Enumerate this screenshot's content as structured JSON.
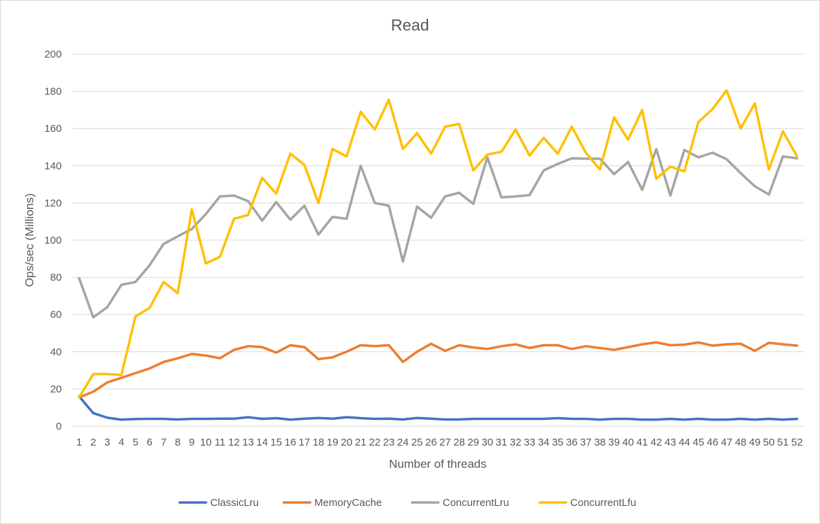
{
  "chart_data": {
    "type": "line",
    "title": "Read",
    "xlabel": "Number of threads",
    "ylabel": "Ops/sec (Millions)",
    "ylim": [
      0,
      200
    ],
    "yticks": [
      "0",
      "20",
      "40",
      "60",
      "80",
      "100",
      "120",
      "140",
      "160",
      "180",
      "200"
    ],
    "grid": true,
    "legend_position": "bottom",
    "categories": [
      "1",
      "2",
      "3",
      "4",
      "5",
      "6",
      "7",
      "8",
      "9",
      "10",
      "11",
      "12",
      "13",
      "14",
      "15",
      "16",
      "17",
      "18",
      "19",
      "20",
      "21",
      "22",
      "23",
      "24",
      "25",
      "26",
      "27",
      "28",
      "29",
      "30",
      "31",
      "32",
      "33",
      "34",
      "35",
      "36",
      "37",
      "38",
      "39",
      "40",
      "41",
      "42",
      "43",
      "44",
      "45",
      "46",
      "47",
      "48",
      "49",
      "50",
      "51",
      "52"
    ],
    "series": [
      {
        "name": "ClassicLru",
        "color": "#4472c4",
        "values": [
          16,
          7,
          4.5,
          3.5,
          3.8,
          3.9,
          3.9,
          3.6,
          3.9,
          3.9,
          4,
          4,
          4.8,
          3.9,
          4.3,
          3.5,
          4,
          4.4,
          4,
          4.8,
          4.3,
          3.9,
          4,
          3.6,
          4.4,
          4,
          3.6,
          3.6,
          3.9,
          3.9,
          3.9,
          3.9,
          3.9,
          3.9,
          4.3,
          3.9,
          3.9,
          3.5,
          3.9,
          3.9,
          3.5,
          3.5,
          3.9,
          3.5,
          3.9,
          3.5,
          3.5,
          3.9,
          3.5,
          3.9,
          3.5,
          3.9
        ]
      },
      {
        "name": "MemoryCache",
        "color": "#ed7d31",
        "values": [
          15.5,
          18.5,
          23.5,
          26,
          28.5,
          31,
          34.5,
          36.5,
          38.8,
          38,
          36.5,
          41,
          43,
          42.5,
          39.5,
          43.5,
          42.5,
          36,
          37,
          40,
          43.5,
          43,
          43.5,
          34.5,
          40,
          44.3,
          40.5,
          43.5,
          42.3,
          41.5,
          43,
          44,
          42,
          43.5,
          43.5,
          41.5,
          43,
          42,
          41,
          42.5,
          44,
          45,
          43.5,
          43.8,
          45,
          43.3,
          44,
          44.3,
          40.5,
          44.8,
          44,
          43.3
        ]
      },
      {
        "name": "ConcurrentLru",
        "color": "#a5a5a5",
        "values": [
          79.5,
          58.5,
          64,
          76,
          77.5,
          86.5,
          98,
          102,
          106,
          114,
          123.5,
          124,
          121,
          110.5,
          120.5,
          111,
          118.5,
          103,
          112.5,
          111.5,
          140,
          120,
          118.5,
          88.5,
          118,
          112,
          123.5,
          125.5,
          119.5,
          144.5,
          123,
          123.5,
          124.2,
          137.5,
          141,
          144,
          143.8,
          143.8,
          135.5,
          142,
          127,
          149,
          124,
          148.5,
          144.5,
          147,
          143.5,
          136,
          129,
          124.5,
          145,
          144
        ]
      },
      {
        "name": "ConcurrentLfu",
        "color": "#ffc000",
        "values": [
          15.5,
          28,
          28,
          27.5,
          59,
          63.5,
          77.5,
          71.5,
          116.5,
          87.5,
          91,
          111.5,
          113.5,
          133.5,
          125,
          146.5,
          140.5,
          120,
          149,
          145,
          169,
          159.5,
          175.5,
          149,
          157.5,
          146.5,
          161,
          162.5,
          137.5,
          146,
          147.5,
          159.5,
          145.5,
          155,
          146.5,
          161,
          147,
          138,
          166,
          154,
          170,
          133,
          139.5,
          137,
          163.5,
          170.5,
          180.5,
          160,
          173.5,
          138,
          158.5,
          145
        ]
      }
    ]
  }
}
